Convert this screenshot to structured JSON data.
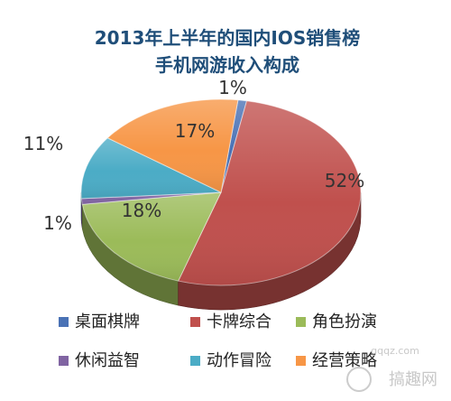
{
  "chart_data": {
    "type": "pie",
    "title": "2013年上半年的国内IOS销售榜",
    "subtitle": "手机网游收入构成",
    "categories": [
      "桌面棋牌",
      "卡牌综合",
      "角色扮演",
      "休闲益智",
      "动作冒险",
      "经营策略"
    ],
    "values": [
      1,
      52,
      18,
      1,
      11,
      17
    ],
    "value_labels": [
      "1%",
      "52%",
      "18%",
      "1%",
      "11%",
      "17%"
    ],
    "colors": [
      "#4a72b5",
      "#c0504d",
      "#9bbb59",
      "#8064a2",
      "#4bacc6",
      "#f79646"
    ],
    "legend_position": "bottom",
    "three_d": true
  },
  "watermark": {
    "url": "gqqz.com",
    "site": "搞趣网"
  }
}
